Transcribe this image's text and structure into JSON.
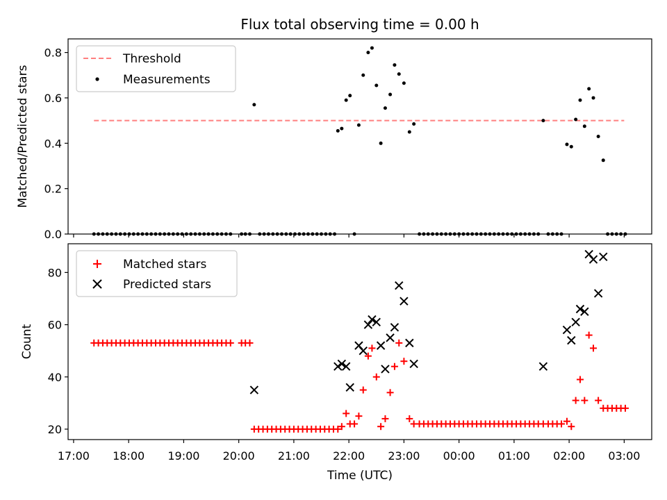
{
  "chart_data": [
    {
      "type": "scatter",
      "title": "Flux total observing time = 0.00 h",
      "xlabel": "",
      "ylabel": "Matched/Predicted stars",
      "ylim": [
        0,
        0.86
      ],
      "yticks": [
        "0.0",
        "0.2",
        "0.4",
        "0.6",
        "0.8"
      ],
      "ytick_values": [
        0,
        0.2,
        0.4,
        0.6,
        0.8
      ],
      "legend_position": "upper-left",
      "legend": [
        "Threshold",
        "Measurements"
      ],
      "threshold": {
        "label": "Threshold",
        "value": 0.5,
        "x_start": 17.37,
        "x_end": 27.0,
        "color": "#ff7f7f"
      },
      "series": [
        {
          "name": "Measurements",
          "color": "#000000",
          "points": [
            [
              17.37,
              0
            ],
            [
              17.45,
              0
            ],
            [
              17.53,
              0
            ],
            [
              17.61,
              0
            ],
            [
              17.69,
              0
            ],
            [
              17.77,
              0
            ],
            [
              17.85,
              0
            ],
            [
              17.93,
              0
            ],
            [
              18.01,
              0
            ],
            [
              18.09,
              0
            ],
            [
              18.17,
              0
            ],
            [
              18.25,
              0
            ],
            [
              18.33,
              0
            ],
            [
              18.41,
              0
            ],
            [
              18.49,
              0
            ],
            [
              18.57,
              0
            ],
            [
              18.65,
              0
            ],
            [
              18.73,
              0
            ],
            [
              18.81,
              0
            ],
            [
              18.89,
              0
            ],
            [
              18.97,
              0
            ],
            [
              19.05,
              0
            ],
            [
              19.13,
              0
            ],
            [
              19.21,
              0
            ],
            [
              19.29,
              0
            ],
            [
              19.37,
              0
            ],
            [
              19.45,
              0
            ],
            [
              19.53,
              0
            ],
            [
              19.61,
              0
            ],
            [
              19.69,
              0
            ],
            [
              19.77,
              0
            ],
            [
              19.85,
              0
            ],
            [
              20.05,
              0
            ],
            [
              20.12,
              0
            ],
            [
              20.2,
              0
            ],
            [
              20.28,
              0.57
            ],
            [
              20.38,
              0
            ],
            [
              20.46,
              0
            ],
            [
              20.54,
              0
            ],
            [
              20.62,
              0
            ],
            [
              20.7,
              0
            ],
            [
              20.78,
              0
            ],
            [
              20.86,
              0
            ],
            [
              20.94,
              0
            ],
            [
              21.02,
              0
            ],
            [
              21.1,
              0
            ],
            [
              21.18,
              0
            ],
            [
              21.26,
              0
            ],
            [
              21.34,
              0
            ],
            [
              21.42,
              0
            ],
            [
              21.5,
              0
            ],
            [
              21.58,
              0
            ],
            [
              21.66,
              0
            ],
            [
              21.74,
              0
            ],
            [
              21.8,
              0.455
            ],
            [
              21.87,
              0.465
            ],
            [
              21.95,
              0.59
            ],
            [
              22.02,
              0.61
            ],
            [
              22.1,
              0
            ],
            [
              22.18,
              0.48
            ],
            [
              22.26,
              0.7
            ],
            [
              22.35,
              0.8
            ],
            [
              22.42,
              0.82
            ],
            [
              22.5,
              0.655
            ],
            [
              22.58,
              0.4
            ],
            [
              22.66,
              0.555
            ],
            [
              22.75,
              0.615
            ],
            [
              22.83,
              0.745
            ],
            [
              22.91,
              0.705
            ],
            [
              23.0,
              0.665
            ],
            [
              23.1,
              0.45
            ],
            [
              23.18,
              0.485
            ],
            [
              23.28,
              0
            ],
            [
              23.36,
              0
            ],
            [
              23.44,
              0
            ],
            [
              23.52,
              0
            ],
            [
              23.6,
              0
            ],
            [
              23.68,
              0
            ],
            [
              23.76,
              0
            ],
            [
              23.84,
              0
            ],
            [
              23.92,
              0
            ],
            [
              24.0,
              0
            ],
            [
              24.08,
              0
            ],
            [
              24.16,
              0
            ],
            [
              24.24,
              0
            ],
            [
              24.32,
              0
            ],
            [
              24.4,
              0
            ],
            [
              24.48,
              0
            ],
            [
              24.56,
              0
            ],
            [
              24.64,
              0
            ],
            [
              24.72,
              0
            ],
            [
              24.8,
              0
            ],
            [
              24.88,
              0
            ],
            [
              24.96,
              0
            ],
            [
              25.04,
              0
            ],
            [
              25.12,
              0
            ],
            [
              25.2,
              0
            ],
            [
              25.28,
              0
            ],
            [
              25.36,
              0
            ],
            [
              25.44,
              0
            ],
            [
              25.53,
              0.5
            ],
            [
              25.62,
              0
            ],
            [
              25.7,
              0
            ],
            [
              25.78,
              0
            ],
            [
              25.86,
              0
            ],
            [
              25.96,
              0.395
            ],
            [
              26.04,
              0.385
            ],
            [
              26.12,
              0.505
            ],
            [
              26.2,
              0.59
            ],
            [
              26.28,
              0.475
            ],
            [
              26.36,
              0.64
            ],
            [
              26.44,
              0.6
            ],
            [
              26.53,
              0.43
            ],
            [
              26.62,
              0.325
            ],
            [
              26.7,
              0
            ],
            [
              26.78,
              0
            ],
            [
              26.86,
              0
            ],
            [
              26.94,
              0
            ],
            [
              27.02,
              0
            ]
          ]
        }
      ]
    },
    {
      "type": "scatter",
      "title": "",
      "xlabel": "Time (UTC)",
      "ylabel": "Count",
      "ylim": [
        16,
        91
      ],
      "yticks": [
        "20",
        "40",
        "60",
        "80"
      ],
      "ytick_values": [
        20,
        40,
        60,
        80
      ],
      "xlim": [
        16.9,
        27.5
      ],
      "xticks": [
        "17:00",
        "18:00",
        "19:00",
        "20:00",
        "21:00",
        "22:00",
        "23:00",
        "00:00",
        "01:00",
        "02:00",
        "03:00"
      ],
      "xtick_values": [
        17,
        18,
        19,
        20,
        21,
        22,
        23,
        24,
        25,
        26,
        27
      ],
      "legend_position": "upper-left",
      "legend": [
        "Matched stars",
        "Predicted stars"
      ],
      "series": [
        {
          "name": "Matched stars",
          "marker": "plus",
          "color": "#ff0000",
          "points": [
            [
              17.37,
              53
            ],
            [
              17.45,
              53
            ],
            [
              17.53,
              53
            ],
            [
              17.61,
              53
            ],
            [
              17.69,
              53
            ],
            [
              17.77,
              53
            ],
            [
              17.85,
              53
            ],
            [
              17.93,
              53
            ],
            [
              18.01,
              53
            ],
            [
              18.09,
              53
            ],
            [
              18.17,
              53
            ],
            [
              18.25,
              53
            ],
            [
              18.33,
              53
            ],
            [
              18.41,
              53
            ],
            [
              18.49,
              53
            ],
            [
              18.57,
              53
            ],
            [
              18.65,
              53
            ],
            [
              18.73,
              53
            ],
            [
              18.81,
              53
            ],
            [
              18.89,
              53
            ],
            [
              18.97,
              53
            ],
            [
              19.05,
              53
            ],
            [
              19.13,
              53
            ],
            [
              19.21,
              53
            ],
            [
              19.29,
              53
            ],
            [
              19.37,
              53
            ],
            [
              19.45,
              53
            ],
            [
              19.53,
              53
            ],
            [
              19.61,
              53
            ],
            [
              19.69,
              53
            ],
            [
              19.77,
              53
            ],
            [
              19.85,
              53
            ],
            [
              20.05,
              53
            ],
            [
              20.12,
              53
            ],
            [
              20.2,
              53
            ],
            [
              20.28,
              20
            ],
            [
              20.36,
              20
            ],
            [
              20.44,
              20
            ],
            [
              20.52,
              20
            ],
            [
              20.6,
              20
            ],
            [
              20.68,
              20
            ],
            [
              20.76,
              20
            ],
            [
              20.84,
              20
            ],
            [
              20.92,
              20
            ],
            [
              21.0,
              20
            ],
            [
              21.08,
              20
            ],
            [
              21.16,
              20
            ],
            [
              21.24,
              20
            ],
            [
              21.32,
              20
            ],
            [
              21.4,
              20
            ],
            [
              21.48,
              20
            ],
            [
              21.56,
              20
            ],
            [
              21.64,
              20
            ],
            [
              21.72,
              20
            ],
            [
              21.8,
              20
            ],
            [
              21.87,
              21
            ],
            [
              21.95,
              26
            ],
            [
              22.02,
              22
            ],
            [
              22.1,
              22
            ],
            [
              22.18,
              25
            ],
            [
              22.26,
              35
            ],
            [
              22.35,
              48
            ],
            [
              22.42,
              51
            ],
            [
              22.5,
              40
            ],
            [
              22.58,
              21
            ],
            [
              22.66,
              24
            ],
            [
              22.75,
              34
            ],
            [
              22.83,
              44
            ],
            [
              22.91,
              53
            ],
            [
              23.0,
              46
            ],
            [
              23.1,
              24
            ],
            [
              23.18,
              22
            ],
            [
              23.28,
              22
            ],
            [
              23.36,
              22
            ],
            [
              23.44,
              22
            ],
            [
              23.52,
              22
            ],
            [
              23.6,
              22
            ],
            [
              23.68,
              22
            ],
            [
              23.76,
              22
            ],
            [
              23.84,
              22
            ],
            [
              23.92,
              22
            ],
            [
              24.0,
              22
            ],
            [
              24.08,
              22
            ],
            [
              24.16,
              22
            ],
            [
              24.24,
              22
            ],
            [
              24.32,
              22
            ],
            [
              24.4,
              22
            ],
            [
              24.48,
              22
            ],
            [
              24.56,
              22
            ],
            [
              24.64,
              22
            ],
            [
              24.72,
              22
            ],
            [
              24.8,
              22
            ],
            [
              24.88,
              22
            ],
            [
              24.96,
              22
            ],
            [
              25.04,
              22
            ],
            [
              25.12,
              22
            ],
            [
              25.2,
              22
            ],
            [
              25.28,
              22
            ],
            [
              25.36,
              22
            ],
            [
              25.44,
              22
            ],
            [
              25.53,
              22
            ],
            [
              25.62,
              22
            ],
            [
              25.7,
              22
            ],
            [
              25.78,
              22
            ],
            [
              25.86,
              22
            ],
            [
              25.96,
              23
            ],
            [
              26.04,
              21
            ],
            [
              26.12,
              31
            ],
            [
              26.2,
              39
            ],
            [
              26.28,
              31
            ],
            [
              26.36,
              56
            ],
            [
              26.44,
              51
            ],
            [
              26.53,
              31
            ],
            [
              26.62,
              28
            ],
            [
              26.7,
              28
            ],
            [
              26.78,
              28
            ],
            [
              26.86,
              28
            ],
            [
              26.94,
              28
            ],
            [
              27.02,
              28
            ]
          ]
        },
        {
          "name": "Predicted stars",
          "marker": "x",
          "color": "#000000",
          "points": [
            [
              20.28,
              35
            ],
            [
              21.8,
              44
            ],
            [
              21.87,
              45
            ],
            [
              21.95,
              44
            ],
            [
              22.02,
              36
            ],
            [
              22.18,
              52
            ],
            [
              22.26,
              50
            ],
            [
              22.35,
              60
            ],
            [
              22.42,
              62
            ],
            [
              22.5,
              61
            ],
            [
              22.58,
              52
            ],
            [
              22.66,
              43
            ],
            [
              22.75,
              55
            ],
            [
              22.83,
              59
            ],
            [
              22.91,
              75
            ],
            [
              23.0,
              69
            ],
            [
              23.1,
              53
            ],
            [
              23.18,
              45
            ],
            [
              25.53,
              44
            ],
            [
              25.96,
              58
            ],
            [
              26.04,
              54
            ],
            [
              26.12,
              61
            ],
            [
              26.2,
              66
            ],
            [
              26.28,
              65
            ],
            [
              26.36,
              87
            ],
            [
              26.44,
              85
            ],
            [
              26.53,
              72
            ],
            [
              26.62,
              86
            ]
          ]
        }
      ]
    }
  ]
}
